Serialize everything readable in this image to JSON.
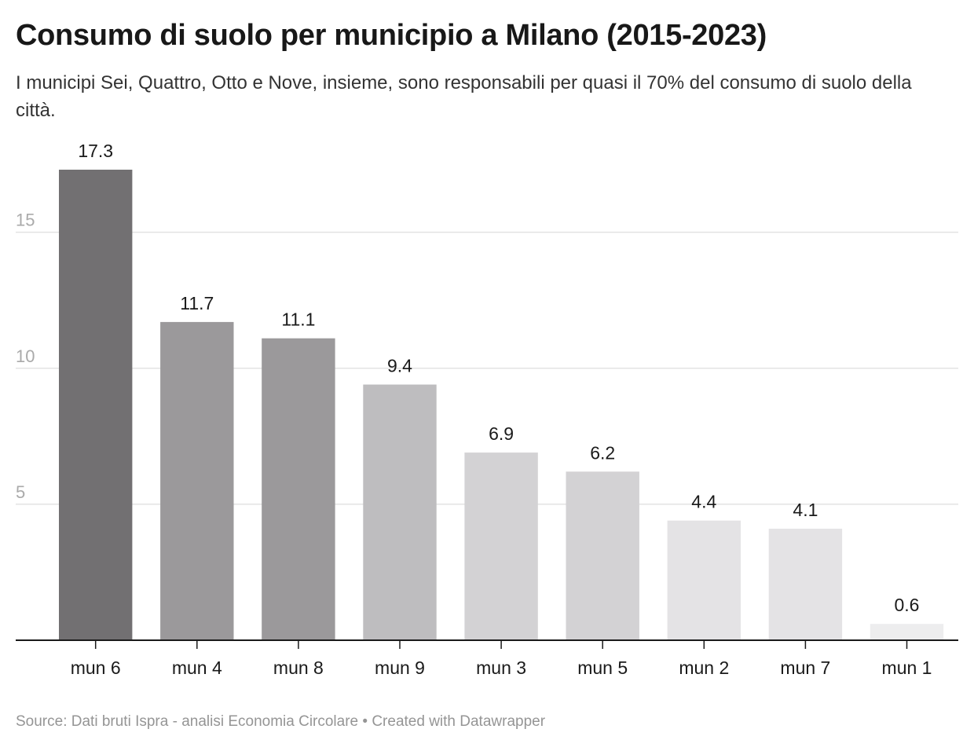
{
  "header": {
    "title": "Consumo di suolo per municipio a Milano (2015-2023)",
    "subtitle": "I municipi Sei, Quattro, Otto e Nove, insieme, sono responsabili per quasi il 70% del consumo di suolo della città."
  },
  "footer": {
    "source": "Source: Dati bruti Ispra - analisi Economia Circolare • Created with Datawrapper"
  },
  "chart_data": {
    "type": "bar",
    "title": "Consumo di suolo per municipio a Milano (2015-2023)",
    "categories": [
      "mun 6",
      "mun 4",
      "mun 8",
      "mun 9",
      "mun 3",
      "mun 5",
      "mun 2",
      "mun 7",
      "mun 1"
    ],
    "values": [
      17.3,
      11.7,
      11.1,
      9.4,
      6.9,
      6.2,
      4.4,
      4.1,
      0.6
    ],
    "bar_colors": [
      "#727072",
      "#9b999b",
      "#9b999b",
      "#bebdbf",
      "#d3d2d4",
      "#d3d2d4",
      "#e4e3e5",
      "#e4e3e5",
      "#ededee"
    ],
    "yticks": [
      5,
      10,
      15
    ],
    "ylim": [
      0,
      17.3
    ],
    "xlabel": "",
    "ylabel": "",
    "grid": true,
    "legend": "none",
    "tick_color": "#aaaaaa",
    "grid_color": "#e3e3e3",
    "axis_color": "#1a1a1a"
  }
}
